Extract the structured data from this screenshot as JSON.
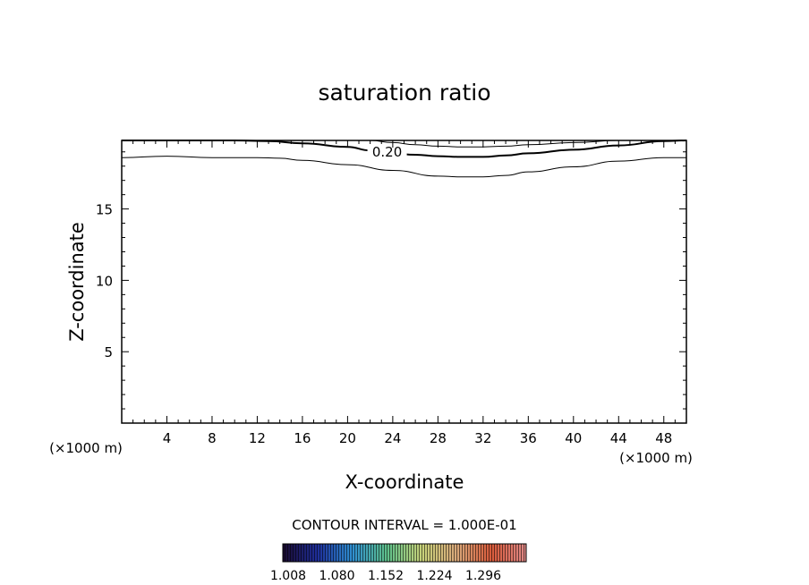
{
  "chart_data": {
    "type": "contour",
    "title": "saturation ratio",
    "xlabel": "X-coordinate",
    "ylabel": "Z-coordinate",
    "x_unit_left": "(×1000 m)",
    "x_unit_right": "(×1000 m)",
    "xlim": [
      0,
      50
    ],
    "ylim": [
      0,
      19.8
    ],
    "x_ticks": [
      4,
      8,
      12,
      16,
      20,
      24,
      28,
      32,
      36,
      40,
      44,
      48
    ],
    "y_ticks": [
      5,
      10,
      15
    ],
    "contours": [
      {
        "level_label": "",
        "stroke_width": 1,
        "points": [
          [
            0,
            18.6
          ],
          [
            4,
            18.7
          ],
          [
            8,
            18.6
          ],
          [
            12,
            18.6
          ],
          [
            14,
            18.55
          ],
          [
            16,
            18.4
          ],
          [
            20,
            18.1
          ],
          [
            24,
            17.7
          ],
          [
            28,
            17.3
          ],
          [
            30,
            17.25
          ],
          [
            32,
            17.25
          ],
          [
            34,
            17.35
          ],
          [
            36,
            17.6
          ],
          [
            40,
            17.95
          ],
          [
            44,
            18.35
          ],
          [
            48,
            18.6
          ],
          [
            50,
            18.6
          ]
        ]
      },
      {
        "level_label": "0.20",
        "label_at": [
          23.5,
          19.0
        ],
        "stroke_width": 2,
        "points": [
          [
            0,
            19.8
          ],
          [
            6,
            19.8
          ],
          [
            10,
            19.8
          ],
          [
            13,
            19.75
          ],
          [
            16,
            19.6
          ],
          [
            20,
            19.35
          ],
          [
            22,
            19.1
          ],
          [
            26,
            18.8
          ],
          [
            28,
            18.7
          ],
          [
            30,
            18.65
          ],
          [
            32,
            18.65
          ],
          [
            34,
            18.75
          ],
          [
            36,
            18.9
          ],
          [
            40,
            19.15
          ],
          [
            44,
            19.45
          ],
          [
            48,
            19.75
          ],
          [
            50,
            19.8
          ]
        ]
      },
      {
        "level_label": "",
        "stroke_width": 1,
        "points": [
          [
            22,
            19.8
          ],
          [
            24,
            19.65
          ],
          [
            26,
            19.5
          ],
          [
            28,
            19.4
          ],
          [
            30,
            19.35
          ],
          [
            32,
            19.35
          ],
          [
            34,
            19.4
          ],
          [
            36,
            19.5
          ],
          [
            40,
            19.65
          ],
          [
            44,
            19.8
          ]
        ]
      }
    ],
    "contour_interval_text": "CONTOUR INTERVAL = 1.000E-01",
    "colorbar": {
      "labels": [
        "1.008",
        "1.080",
        "1.152",
        "1.224",
        "1.296"
      ],
      "colors": [
        "#1a0a2e",
        "#1e2e9a",
        "#2f8fd0",
        "#5ec08a",
        "#c8d27a",
        "#d9a87a",
        "#d85a3a",
        "#e08a88"
      ]
    }
  }
}
